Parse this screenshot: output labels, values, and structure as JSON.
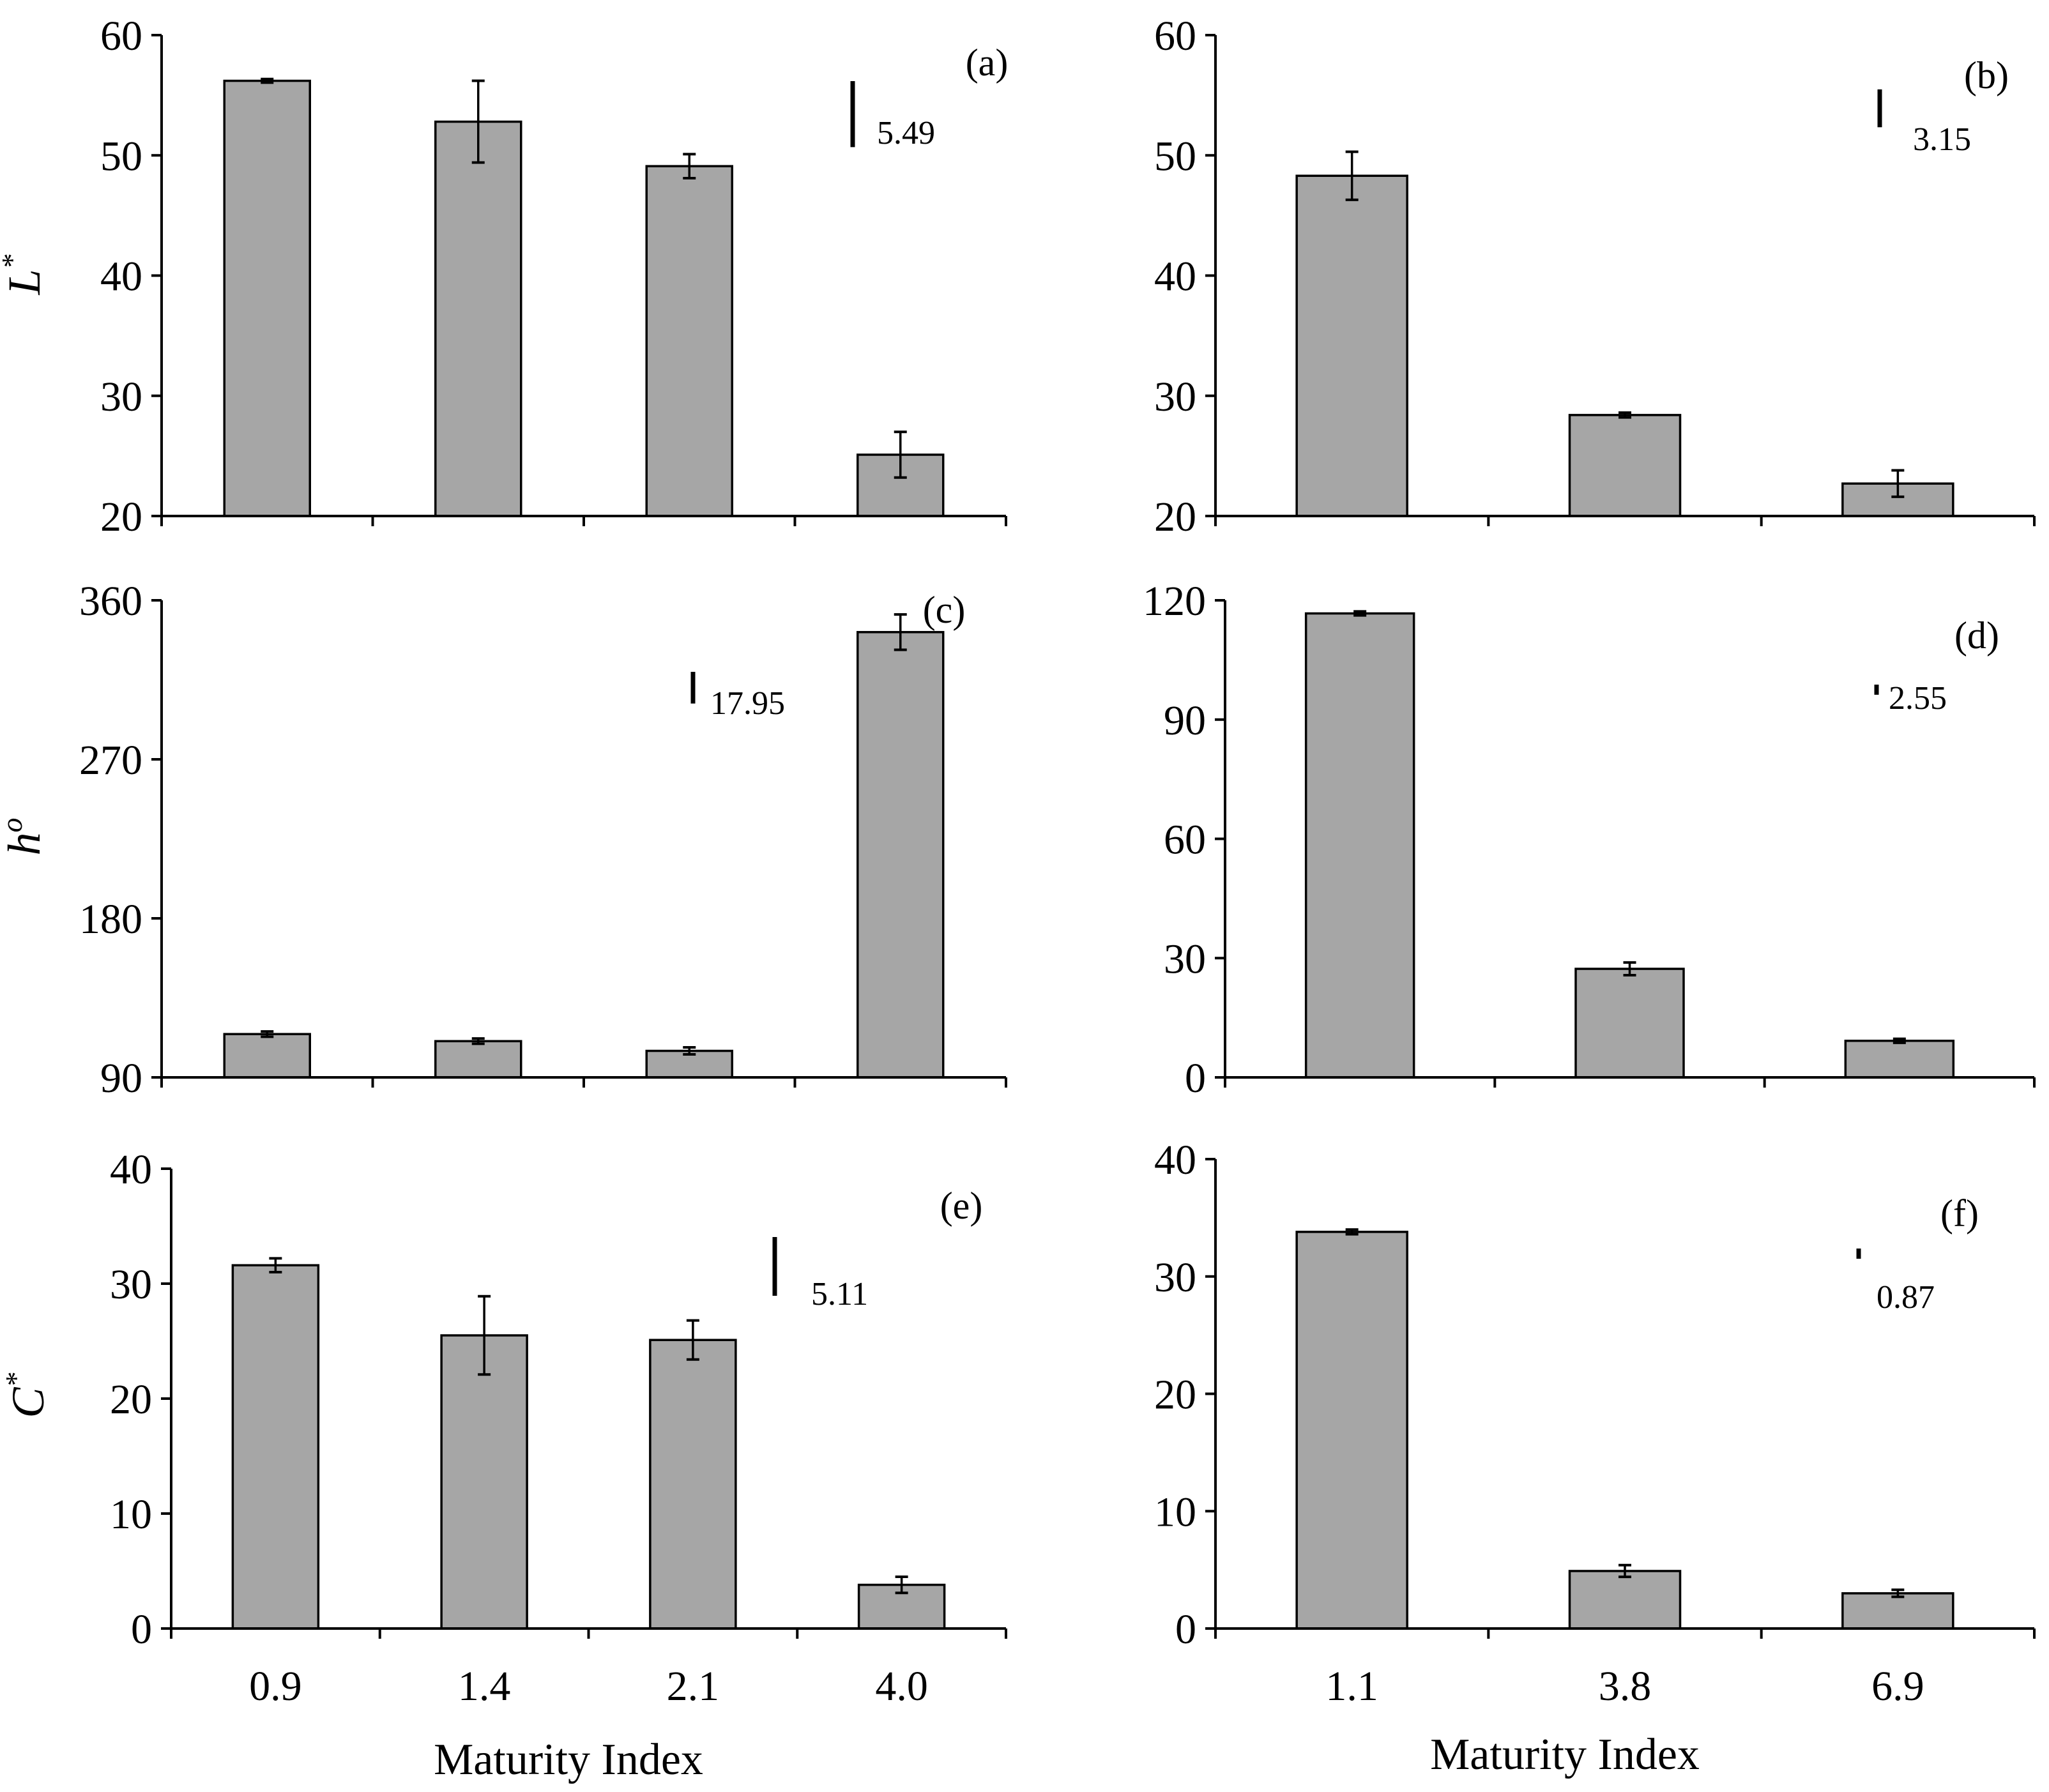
{
  "figure": {
    "bar_color": "#a6a6a6",
    "axis_color": "#000000",
    "xlabel": "Maturity Index"
  },
  "chart_data": [
    {
      "id": "a",
      "type": "bar",
      "panel_label": "(a)",
      "ylabel": "L",
      "ylabel_sup": "*",
      "categories": [
        "0.9",
        "1.4",
        "2.1",
        "4.0"
      ],
      "values": [
        56.2,
        52.8,
        49.1,
        25.1
      ],
      "errors": [
        0.15,
        3.4,
        1.0,
        1.9
      ],
      "ylim": [
        20,
        60
      ],
      "yticks": [
        20,
        30,
        40,
        50,
        60
      ],
      "lsd": {
        "value": 5.49,
        "label": "5.49"
      },
      "show_xticklabels": false
    },
    {
      "id": "b",
      "type": "bar",
      "panel_label": "(b)",
      "ylabel": "",
      "ylabel_sup": "",
      "categories": [
        "1.1",
        "3.8",
        "6.9"
      ],
      "values": [
        48.3,
        28.4,
        22.7
      ],
      "errors": [
        2.0,
        0.2,
        1.1
      ],
      "ylim": [
        20,
        60
      ],
      "yticks": [
        20,
        30,
        40,
        50,
        60
      ],
      "lsd": {
        "value": 3.15,
        "label": "3.15"
      },
      "show_xticklabels": false
    },
    {
      "id": "c",
      "type": "bar",
      "panel_label": "(c)",
      "ylabel": "h",
      "ylabel_sup": "o",
      "categories": [
        "0.9",
        "1.4",
        "2.1",
        "4.0"
      ],
      "values": [
        114.5,
        110.5,
        105,
        342
      ],
      "errors": [
        1.5,
        1.5,
        2.0,
        10
      ],
      "ylim": [
        90,
        360
      ],
      "yticks": [
        90,
        180,
        270,
        360
      ],
      "lsd": {
        "value": 17.95,
        "label": "17.95"
      },
      "show_xticklabels": false
    },
    {
      "id": "d",
      "type": "bar",
      "panel_label": "(d)",
      "ylabel": "",
      "ylabel_sup": "",
      "categories": [
        "1.1",
        "3.8",
        "6.9"
      ],
      "values": [
        116.7,
        27.3,
        9.2
      ],
      "errors": [
        0.5,
        1.6,
        0.5
      ],
      "ylim": [
        0,
        120
      ],
      "yticks": [
        0,
        30,
        60,
        90,
        120
      ],
      "lsd": {
        "value": 2.55,
        "label": "2.55"
      },
      "show_xticklabels": false
    },
    {
      "id": "e",
      "type": "bar",
      "panel_label": "(e)",
      "ylabel": "C",
      "ylabel_sup": "*",
      "categories": [
        "0.9",
        "1.4",
        "2.1",
        "4.0"
      ],
      "values": [
        31.6,
        25.5,
        25.1,
        3.8
      ],
      "errors": [
        0.6,
        3.4,
        1.7,
        0.7
      ],
      "ylim": [
        0,
        40
      ],
      "yticks": [
        0,
        10,
        20,
        30,
        40
      ],
      "lsd": {
        "value": 5.11,
        "label": "5.11"
      },
      "show_xticklabels": true
    },
    {
      "id": "f",
      "type": "bar",
      "panel_label": "(f)",
      "ylabel": "",
      "ylabel_sup": "",
      "categories": [
        "1.1",
        "3.8",
        "6.9"
      ],
      "values": [
        33.8,
        4.9,
        3.0
      ],
      "errors": [
        0.2,
        0.5,
        0.3
      ],
      "ylim": [
        0,
        40
      ],
      "yticks": [
        0,
        10,
        20,
        30,
        40
      ],
      "lsd": {
        "value": 0.87,
        "label": "0.87"
      },
      "show_xticklabels": true
    }
  ]
}
